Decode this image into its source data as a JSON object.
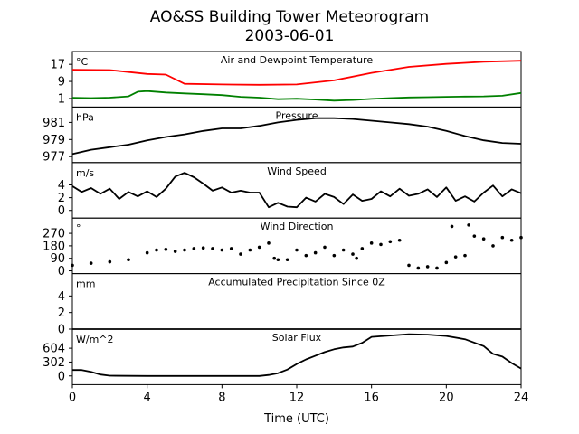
{
  "title": "AO&SS Building Tower Meteorogram",
  "subtitle": "2003-06-01",
  "xlabel": "Time (UTC)",
  "xticks": [
    0,
    4,
    8,
    12,
    16,
    20,
    24
  ],
  "xlim": [
    0,
    24
  ],
  "chart_data": [
    {
      "type": "line",
      "title": "Air and Dewpoint Temperature",
      "unit": "°C",
      "ylim": [
        -3,
        23
      ],
      "yticks": [
        1,
        9,
        17
      ],
      "series": [
        {
          "color": "#ff0000",
          "x": [
            0,
            2,
            4,
            5,
            6,
            8,
            10,
            12,
            14,
            16,
            18,
            20,
            22,
            24
          ],
          "y": [
            14.5,
            14.3,
            12.5,
            12.2,
            7.9,
            7.6,
            7.4,
            7.6,
            9.5,
            13.0,
            15.8,
            17.2,
            18.2,
            18.7
          ]
        },
        {
          "color": "#008000",
          "x": [
            0,
            1,
            2,
            3,
            3.5,
            4,
            5,
            6,
            7,
            8,
            9,
            10,
            11,
            12,
            13,
            14,
            15,
            16,
            17,
            18,
            19,
            20,
            21,
            22,
            23,
            24
          ],
          "y": [
            1.3,
            1.2,
            1.4,
            2.0,
            4.2,
            4.5,
            3.8,
            3.4,
            3.0,
            2.6,
            1.8,
            1.4,
            0.7,
            0.9,
            0.5,
            0.0,
            0.3,
            0.8,
            1.2,
            1.5,
            1.6,
            1.8,
            1.9,
            2.0,
            2.3,
            3.6
          ]
        }
      ]
    },
    {
      "type": "line",
      "title": "Pressure",
      "unit": "hPa",
      "ylim": [
        976.3,
        982.8
      ],
      "yticks": [
        977,
        979,
        981
      ],
      "series": [
        {
          "color": "#000000",
          "x": [
            0,
            1,
            2,
            3,
            4,
            5,
            6,
            7,
            8,
            9,
            10,
            11,
            12,
            13,
            14,
            15,
            16,
            17,
            18,
            19,
            20,
            21,
            22,
            23,
            24
          ],
          "y": [
            977.3,
            977.8,
            978.1,
            978.4,
            978.9,
            979.3,
            979.6,
            980.0,
            980.3,
            980.3,
            980.6,
            981.0,
            981.3,
            981.5,
            981.5,
            981.4,
            981.2,
            981.0,
            980.8,
            980.5,
            980.0,
            979.4,
            978.9,
            978.6,
            978.5
          ]
        }
      ]
    },
    {
      "type": "line",
      "title": "Wind Speed",
      "unit": "m/s",
      "ylim": [
        -1.2,
        7.5
      ],
      "yticks": [
        0,
        2,
        4
      ],
      "series": [
        {
          "color": "#000000",
          "x": [
            0,
            0.5,
            1,
            1.5,
            2,
            2.5,
            3,
            3.5,
            4,
            4.5,
            5,
            5.5,
            6,
            6.5,
            7,
            7.5,
            8,
            8.5,
            9,
            9.5,
            10,
            10.5,
            11,
            11.5,
            12,
            12.5,
            13,
            13.5,
            14,
            14.5,
            15,
            15.5,
            16,
            16.5,
            17,
            17.5,
            18,
            18.5,
            19,
            19.5,
            20,
            20.5,
            21,
            21.5,
            22,
            22.5,
            23,
            23.5,
            24
          ],
          "y": [
            3.8,
            2.9,
            3.5,
            2.6,
            3.4,
            1.8,
            2.9,
            2.2,
            3.0,
            2.1,
            3.4,
            5.3,
            5.9,
            5.2,
            4.2,
            3.1,
            3.6,
            2.8,
            3.1,
            2.8,
            2.8,
            0.5,
            1.2,
            0.6,
            0.5,
            2.0,
            1.4,
            2.6,
            2.1,
            1.0,
            2.5,
            1.5,
            1.8,
            3.0,
            2.2,
            3.4,
            2.3,
            2.6,
            3.3,
            2.1,
            3.6,
            1.5,
            2.2,
            1.4,
            2.8,
            3.9,
            2.2,
            3.3,
            2.7
          ]
        }
      ]
    },
    {
      "type": "scatter",
      "title": "Wind Direction",
      "unit": "°",
      "ylim": [
        -20,
        380
      ],
      "yticks": [
        0,
        90,
        180,
        270
      ],
      "series": [
        {
          "color": "#000000",
          "x": [
            0,
            1,
            2,
            3,
            4,
            4.5,
            5,
            5.5,
            6,
            6.5,
            7,
            7.5,
            8,
            8.5,
            9,
            9.5,
            10,
            10.5,
            10.8,
            11,
            11.5,
            12,
            12.5,
            13,
            13.5,
            14,
            14.5,
            15,
            15.2,
            15.5,
            16,
            16.5,
            17,
            17.5,
            18,
            18.5,
            19,
            19.5,
            20,
            20.3,
            20.5,
            21,
            21.2,
            21.5,
            22,
            22.5,
            23,
            23.5,
            24
          ],
          "y": [
            40,
            55,
            65,
            80,
            130,
            150,
            155,
            140,
            150,
            160,
            165,
            160,
            150,
            160,
            120,
            150,
            170,
            200,
            90,
            80,
            80,
            150,
            110,
            130,
            170,
            110,
            150,
            120,
            90,
            160,
            200,
            190,
            210,
            220,
            40,
            20,
            30,
            20,
            60,
            320,
            100,
            110,
            330,
            250,
            230,
            180,
            240,
            220,
            240
          ]
        }
      ]
    },
    {
      "type": "line",
      "title": "Accumulated Precipitation Since 0Z",
      "unit": "mm",
      "ylim": [
        0,
        6.7
      ],
      "yticks": [
        0,
        2,
        4
      ],
      "series": [
        {
          "color": "#000000",
          "x": [
            0,
            24
          ],
          "y": [
            0,
            0
          ]
        }
      ]
    },
    {
      "type": "line",
      "title": "Solar Flux",
      "unit": "W/m^2",
      "ylim": [
        -190,
        1020
      ],
      "yticks": [
        0,
        302,
        604
      ],
      "series": [
        {
          "color": "#000000",
          "x": [
            0,
            0.5,
            1,
            1.5,
            2,
            4,
            6,
            8,
            10,
            10.5,
            11,
            11.5,
            12,
            12.5,
            13,
            13.5,
            14,
            14.5,
            15,
            15.5,
            16,
            17,
            18,
            19,
            20,
            21,
            22,
            22.5,
            23,
            23.5,
            24
          ],
          "y": [
            130,
            130,
            90,
            30,
            5,
            0,
            0,
            0,
            0,
            20,
            60,
            140,
            260,
            360,
            440,
            520,
            580,
            620,
            640,
            720,
            850,
            880,
            910,
            900,
            870,
            800,
            650,
            480,
            420,
            280,
            160
          ]
        }
      ]
    }
  ]
}
